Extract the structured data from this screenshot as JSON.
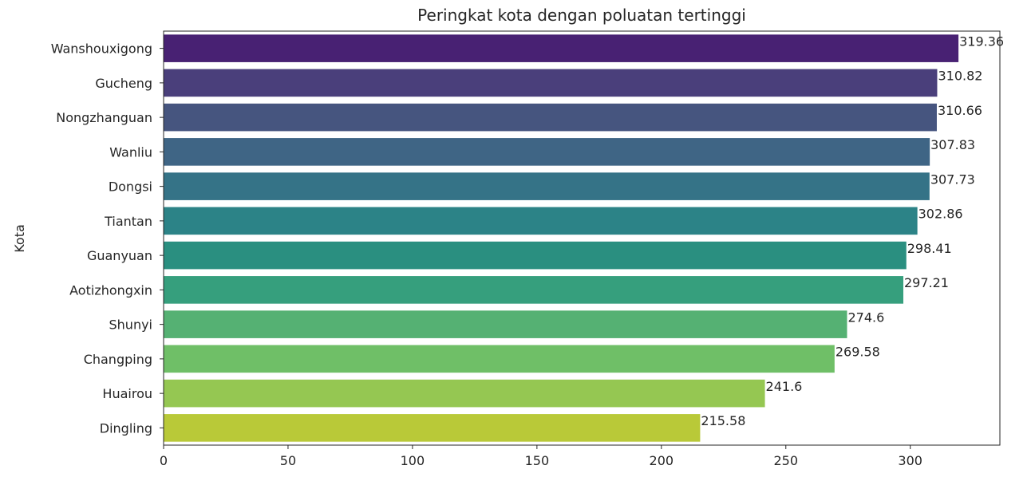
{
  "chart_data": {
    "type": "bar",
    "orientation": "horizontal",
    "title": "Peringkat kota dengan poluatan tertinggi",
    "xlabel": "",
    "ylabel": "Kota",
    "xlim": [
      0,
      336
    ],
    "xticks": [
      0,
      50,
      100,
      150,
      200,
      250,
      300
    ],
    "grid": false,
    "categories": [
      "Wanshouxigong",
      "Gucheng",
      "Nongzhanguan",
      "Wanliu",
      "Dongsi",
      "Tiantan",
      "Guanyuan",
      "Aotizhongxin",
      "Shunyi",
      "Changping",
      "Huairou",
      "Dingling"
    ],
    "values": [
      319.36,
      310.82,
      310.66,
      307.83,
      307.73,
      302.86,
      298.41,
      297.21,
      274.6,
      269.58,
      241.6,
      215.58
    ],
    "value_labels": [
      "319.36",
      "310.82",
      "310.66",
      "307.83",
      "307.73",
      "302.86",
      "298.41",
      "297.21",
      "274.6",
      "269.58",
      "241.6",
      "215.58"
    ],
    "colors": [
      "#482173",
      "#4a3f7b",
      "#46557f",
      "#3f6585",
      "#357387",
      "#2c8387",
      "#2a8f80",
      "#369f7d",
      "#55b173",
      "#6fbf67",
      "#95c752",
      "#b9c938"
    ]
  }
}
